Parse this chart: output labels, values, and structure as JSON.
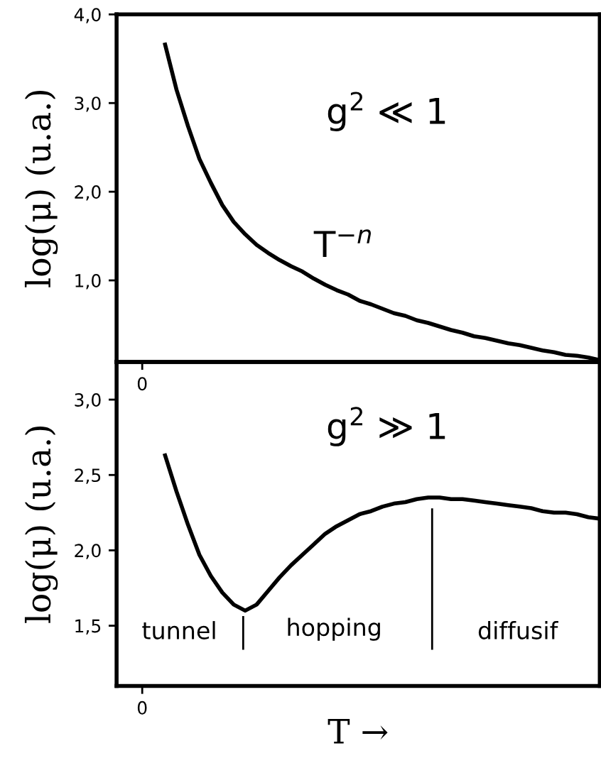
{
  "chart_data": [
    {
      "type": "line",
      "ylabel": "log(μ) (u.a.)",
      "categories": [
        null,
        null,
        null,
        null,
        null,
        null,
        null,
        null,
        null,
        null,
        null,
        null,
        null,
        null,
        null,
        null,
        null,
        null,
        null,
        null,
        null,
        null,
        null,
        null,
        null,
        null,
        null,
        null,
        null,
        null,
        null,
        null,
        null,
        null,
        null,
        null,
        null,
        null,
        null,
        null,
        null
      ],
      "series": [
        {
          "color": "#000000",
          "values": [
            null,
            null,
            3.66,
            3.15,
            2.74,
            2.37,
            2.1,
            1.85,
            1.66,
            1.52,
            1.4,
            1.31,
            1.23,
            1.16,
            1.1,
            1.02,
            0.95,
            0.89,
            0.84,
            0.77,
            0.73,
            0.68,
            0.63,
            0.6,
            0.55,
            0.52,
            0.48,
            0.44,
            0.41,
            0.37,
            0.35,
            0.32,
            0.29,
            0.27,
            0.24,
            0.21,
            0.19,
            0.16,
            0.15,
            0.13,
            0.1
          ]
        }
      ],
      "ylim": [
        0.08,
        4.0
      ],
      "yticks": [
        {
          "value": 1,
          "label": "1,0"
        },
        {
          "value": 2,
          "label": "2,0"
        },
        {
          "value": 3,
          "label": "3,0"
        },
        {
          "value": 4,
          "label": "4,0"
        }
      ],
      "annotations": [
        "0",
        "g$^{2}$ ≪ 1",
        "T$^{−n}$"
      ],
      "grid": false
    },
    {
      "type": "line",
      "ylabel": "log(μ) (u.a.)",
      "xlabel": "T →",
      "categories": [
        null,
        null,
        null,
        null,
        null,
        null,
        null,
        null,
        null,
        null,
        null,
        null,
        null,
        null,
        null,
        null,
        null,
        null,
        null,
        null,
        null,
        null,
        null,
        null,
        null,
        null,
        null,
        null,
        null,
        null,
        null,
        null,
        null,
        null,
        null,
        null,
        null,
        null,
        null,
        null,
        null
      ],
      "series": [
        {
          "color": "#000000",
          "values": [
            null,
            null,
            2.63,
            2.39,
            2.17,
            1.97,
            1.83,
            1.72,
            1.64,
            1.6,
            1.64,
            1.73,
            1.82,
            1.9,
            1.97,
            2.04,
            2.11,
            2.16,
            2.2,
            2.24,
            2.26,
            2.29,
            2.31,
            2.32,
            2.34,
            2.35,
            2.35,
            2.34,
            2.34,
            2.33,
            2.32,
            2.31,
            2.3,
            2.29,
            2.28,
            2.26,
            2.25,
            2.25,
            2.24,
            2.22,
            2.21
          ]
        }
      ],
      "ylim": [
        1.1,
        3.25
      ],
      "yticks": [
        {
          "value": 1.5,
          "label": "1,5"
        },
        {
          "value": 2,
          "label": "2,0"
        },
        {
          "value": 2.5,
          "label": "2,5"
        },
        {
          "value": 3,
          "label": "3,0"
        }
      ],
      "annotations": [
        "0",
        "g$^{2}$ ≫ 1",
        "tunnel",
        "hopping",
        "diffusif"
      ],
      "grid": false
    }
  ]
}
